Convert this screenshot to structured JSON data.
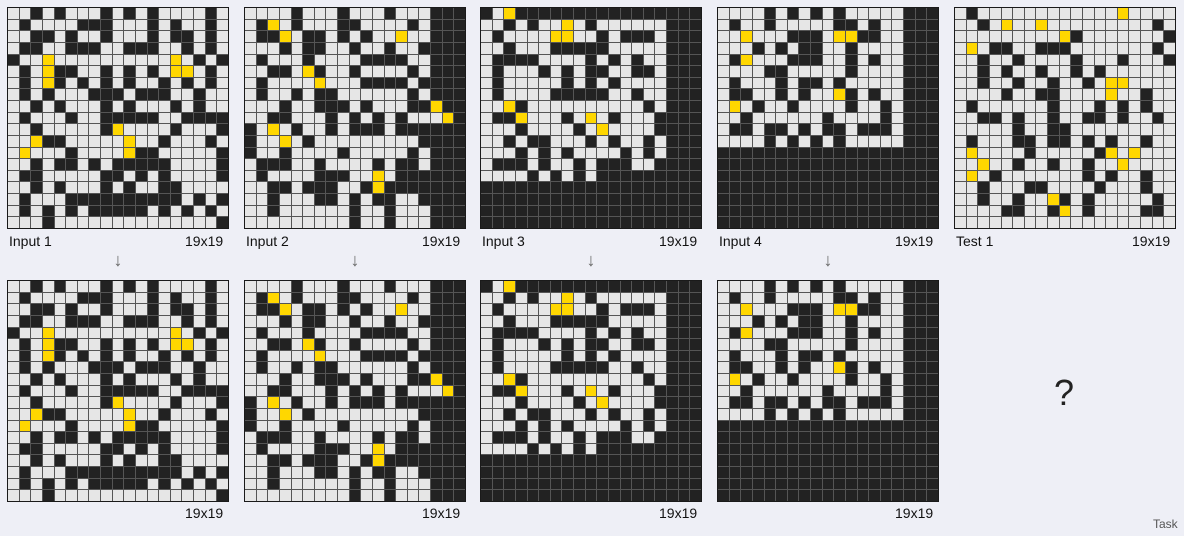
{
  "colors": {
    "0": "#222222",
    "1": "#e6e6e6",
    "2": "#ffd700",
    "3": "#f44336"
  },
  "examples": [
    {
      "input_label": "Input 1",
      "input_size": "19x19",
      "output_size": "19x19",
      "input": [
        "1101011101010111101",
        "1011110001110101101",
        "1100101101110100101",
        "1001100011000110101",
        "0112111111111121010",
        "1012001101010122101",
        "1012010101011010101",
        "1010111000100011011",
        "1101011101011101011",
        "1011101100000110000",
        "1101111102111101110",
        "1120011111211011101",
        "1211101111200111110",
        "1101001010000011110",
        "1001111100101011110",
        "1101011101011001111",
        "1011100000000001010",
        "1010101000001010101",
        "1110111111111111110"
      ],
      "output": [
        "1101011101010111101",
        "1011110001110101101",
        "1100101101110100101",
        "1001100011000110101",
        "0112111111111121010",
        "1012001101010122101",
        "1012010101011010101",
        "1010111000100011011",
        "1101011101011101011",
        "1011101100000110000",
        "1101111102111101110",
        "1120011111211011101",
        "1211101111200111110",
        "1101001010000011110",
        "1001111100101011110",
        "1101011101011001111",
        "1011100000000001010",
        "1010101000001010101",
        "1110111111111111110"
      ]
    },
    {
      "input_label": "Input 2",
      "input_size": "19x19",
      "output_size": "19x19",
      "input": [
        "1111011101110111000",
        "1021011100111101000",
        "1002100101011211000",
        "1110100110110110000",
        "1011101111000011000",
        "1100120110111101000",
        "1011112111000010000",
        "1011010011111101000",
        "1110110001011100200",
        "1100111010101011120",
        "0121011010001000000",
        "0112101111111110000",
        "0110111101111101000",
        "1000110111101001000",
        "1011110001121000000",
        "1100100011020000000",
        "1101110010100110000",
        "1101111110110111000",
        "1111111110110111000"
      ],
      "output": [
        "1111011101110111000",
        "1021011100111101000",
        "1002100101011211000",
        "1110100110110110000",
        "1011101111000011000",
        "1100120110111101000",
        "1011112111000010000",
        "1011010011111101000",
        "1110110001011100200",
        "1100111010101011120",
        "0121011010001000000",
        "0112101111111110000",
        "0110111101111101000",
        "1000110111101001000",
        "1011110001121000000",
        "1100100011020000000",
        "1101110010100110000",
        "1101111110110111000",
        "1111111110110111000"
      ]
    },
    {
      "input_label": "Input 3",
      "input_size": "19x19",
      "output_size": "19x19",
      "input": [
        "0120000000000000000",
        "1101011210111111000",
        "1011112211010001000",
        "1101110000011111000",
        "1000011110101011000",
        "1011101010011001000",
        "1011111010101111000",
        "1011110000011011000",
        "1120111111111101000",
        "1002111012101110000",
        "1110111101211110000",
        "1101001110101101000",
        "1110101011110101000",
        "1000101101000110000",
        "1111010101000000000",
        "0000000000000000000",
        "0000000000000000000",
        "0000000000000000000",
        "0000000000000000000"
      ],
      "output": [
        "0120000000000000000",
        "1101011210111111000",
        "1011112211010001000",
        "1101110000011111000",
        "1000011110101011000",
        "1011101010011001000",
        "1011111010101111000",
        "1011110000011011000",
        "1120111111111101000",
        "1002111012101110000",
        "1110111101211110000",
        "1101001110101101000",
        "1110101011110101000",
        "1000101101000110000",
        "1111010101000000000",
        "0000000000000000000",
        "0000000000000000000",
        "0000000000000000000",
        "0000000000000000000"
      ]
    },
    {
      "input_label": "Input 4",
      "input_size": "19x19",
      "output_size": "19x19",
      "input": [
        "1111010101011111000",
        "1011011111001011000",
        "1121110001220011000",
        "1110101001101111000",
        "1021110001101011000",
        "1111001111101111000",
        "1011101001011111000",
        "1001101011201011000",
        "1210110111101101000",
        "1101111110111101000",
        "1001001010010001000",
        "1111010101011111000",
        "0000000000000000000",
        "0000000000000000000",
        "0000000000000000000",
        "0000000000000000000",
        "0000000000000000000",
        "0000000000000000000",
        "0000000000000000000"
      ],
      "output": [
        "1111010101011111000",
        "1011011111001011000",
        "1121110001220011000",
        "1110101001101111000",
        "1021110001101011000",
        "1111001111101111000",
        "1011101001011111000",
        "1001101011201011000",
        "1210110111101101000",
        "1101111110111101000",
        "1001001010010001000",
        "1111010101011111000",
        "0000000000000000000",
        "0000000000000000000",
        "0000000000000000000",
        "0000000000000000000",
        "0000000000000000000",
        "0000000000000000000",
        "0000000000000000000"
      ]
    }
  ],
  "test": {
    "label": "Test 1",
    "size": "19x19",
    "input": [
      "1011111111111121111",
      "1101211211111111101",
      "1111111112011111110",
      "1210011000111111101",
      "1101101111011101110",
      "1101011011010111111",
      "1101101101101221111",
      "1111011001111211011",
      "1011111101110101011",
      "1100101101100101101",
      "1111101100111111111",
      "1011100100101011011",
      "1211110111110212111",
      "1121101101101121111",
      "1210111111101011011",
      "1101110011110111011",
      "1101101120101111101",
      "1111001102101111001",
      "1111111111111111111"
    ]
  },
  "arrow_glyph": "↓",
  "question": "?",
  "footer": "Task"
}
